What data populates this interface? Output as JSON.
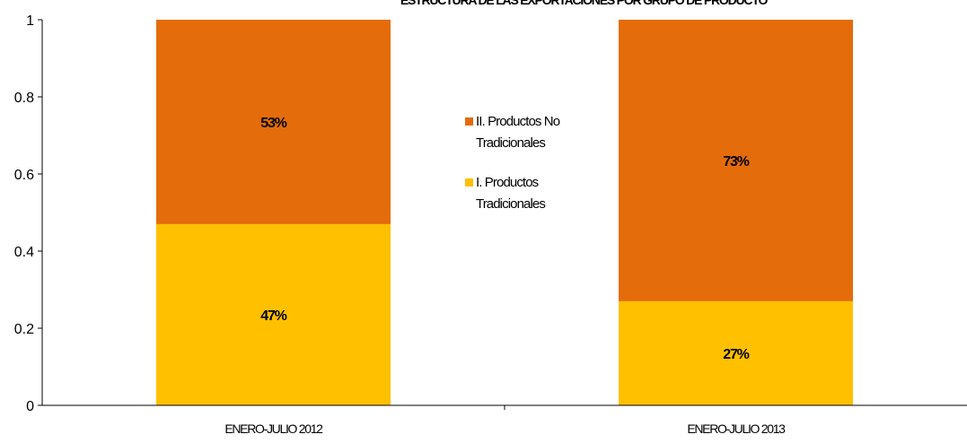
{
  "chart_data": {
    "type": "bar",
    "stacked": true,
    "title": "ESTRUCTURA DE LAS EXPORTACIONES POR GRUPO DE PRODUCTO",
    "categories": [
      "ENERO-JULIO 2012",
      "ENERO-JULIO 2013"
    ],
    "series": [
      {
        "name": "I. Productos Tradicionales",
        "values": [
          0.47,
          0.27
        ],
        "labels": [
          "47%",
          "27%"
        ],
        "color": "#FFC000"
      },
      {
        "name": "II. Productos No Tradicionales",
        "values": [
          0.53,
          0.73
        ],
        "labels": [
          "53%",
          "73%"
        ],
        "color": "#E46C0A"
      }
    ],
    "ylim": [
      0,
      1
    ],
    "yticks": [
      0,
      0.2,
      0.4,
      0.6,
      0.8,
      1
    ],
    "ytick_labels": [
      "0",
      "0.2",
      "0.4",
      "0.6",
      "0.8",
      "1"
    ],
    "legend": {
      "position": "center",
      "entries": [
        {
          "lines": [
            "II. Productos No",
            "Tradicionales"
          ],
          "color": "#E46C0A"
        },
        {
          "lines": [
            "I. Productos",
            "Tradicionales"
          ],
          "color": "#FFC000"
        }
      ]
    },
    "grid": false
  }
}
